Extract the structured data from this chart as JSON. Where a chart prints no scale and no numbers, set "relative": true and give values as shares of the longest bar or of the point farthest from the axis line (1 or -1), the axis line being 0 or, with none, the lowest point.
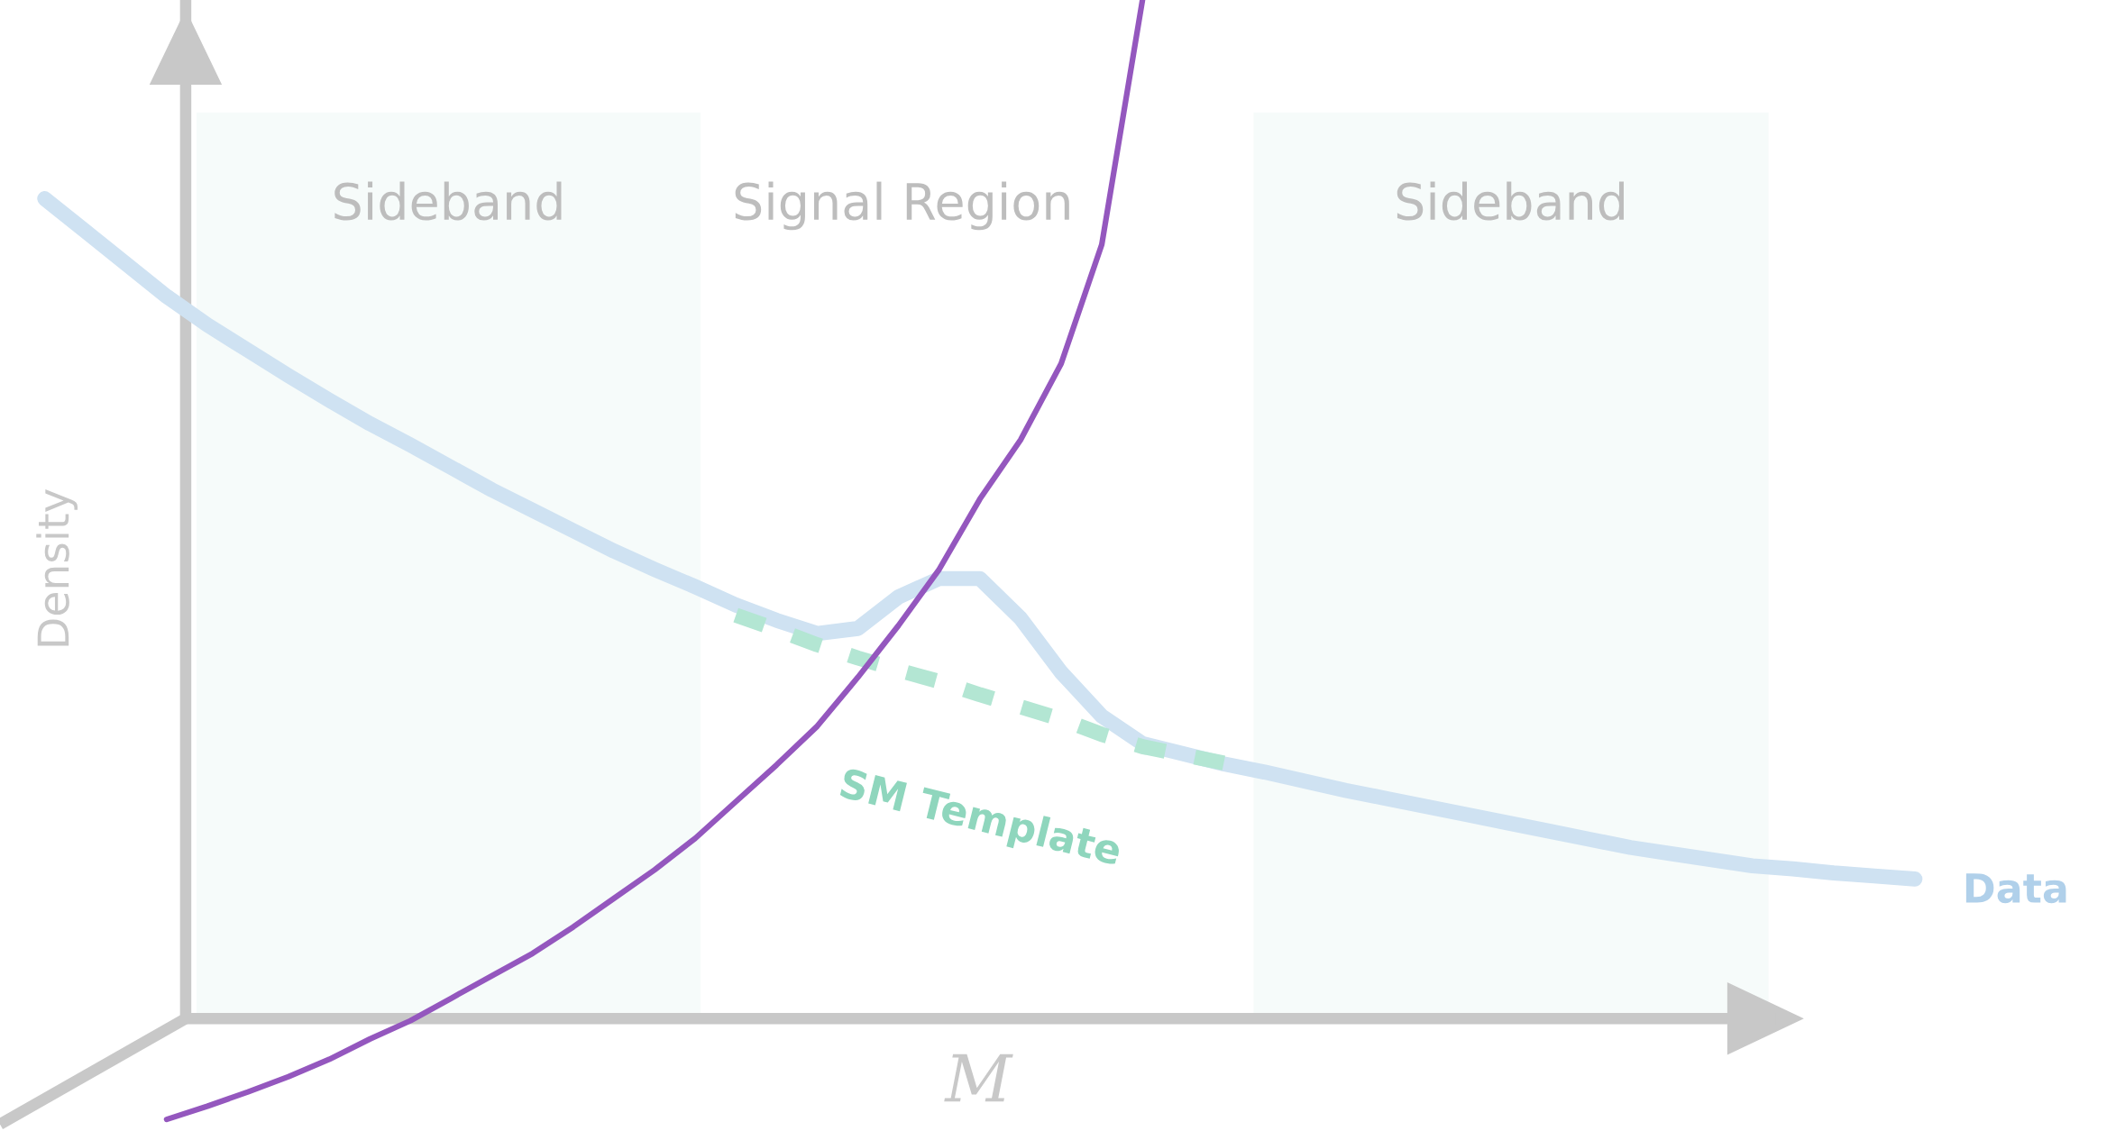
{
  "chart_data": {
    "type": "line",
    "relative": true,
    "xlabel": "M",
    "ylabel": "Density",
    "line_style": "solid",
    "categories": [
      null,
      null,
      null,
      null,
      null,
      null,
      null,
      null,
      null,
      null,
      null,
      null,
      null,
      null,
      null,
      null,
      null,
      null,
      null,
      null,
      null,
      null,
      null,
      null,
      null,
      null,
      null,
      null,
      null,
      null,
      null,
      null,
      null,
      null,
      null,
      null,
      null,
      null,
      null,
      null,
      null,
      null,
      null,
      null,
      null,
      null,
      null
    ],
    "series": [
      {
        "name": "Data",
        "color": "#cfe2f2",
        "values": [
          0.805,
          0.773,
          0.741,
          0.709,
          0.681,
          0.656,
          0.631,
          0.607,
          0.584,
          0.563,
          0.541,
          0.519,
          0.499,
          0.479,
          0.459,
          0.441,
          0.424,
          0.406,
          0.391,
          0.378,
          0.383,
          0.414,
          0.432,
          0.432,
          0.393,
          0.34,
          0.297,
          0.27,
          0.26,
          0.25,
          0.242,
          0.233,
          0.224,
          0.216,
          0.208,
          0.2,
          0.192,
          0.184,
          0.176,
          0.168,
          0.162,
          0.156,
          0.15,
          0.147,
          0.143,
          0.14,
          0.137
        ]
      },
      {
        "name": "SM Template",
        "color": "#b3e6d3",
        "line_style": "dashed",
        "values": [
          null,
          null,
          null,
          null,
          null,
          null,
          null,
          null,
          null,
          null,
          null,
          null,
          null,
          null,
          null,
          null,
          null,
          0.396,
          0.382,
          0.367,
          0.354,
          0.342,
          0.331,
          0.318,
          0.306,
          0.294,
          0.279,
          0.267,
          0.259,
          0.251,
          null,
          null,
          null,
          null,
          null,
          null,
          null,
          null,
          null,
          null,
          null,
          null,
          null,
          null,
          null,
          null,
          null
        ]
      },
      {
        "color": "#9457be",
        "values": [
          null,
          null,
          null,
          -0.099,
          -0.086,
          -0.072,
          -0.057,
          -0.04,
          -0.02,
          -0.002,
          0.02,
          0.042,
          0.064,
          0.09,
          0.118,
          0.146,
          0.177,
          0.213,
          0.249,
          0.287,
          0.335,
          0.386,
          0.441,
          0.51,
          0.568,
          0.643,
          0.76,
          1.0,
          null,
          null,
          null,
          null,
          null,
          null,
          null,
          null,
          null,
          null,
          null,
          null,
          null,
          null,
          null,
          null,
          null,
          null,
          null
        ]
      }
    ],
    "annotations": [
      "Sideband",
      "Signal Region",
      "Sideband"
    ]
  }
}
